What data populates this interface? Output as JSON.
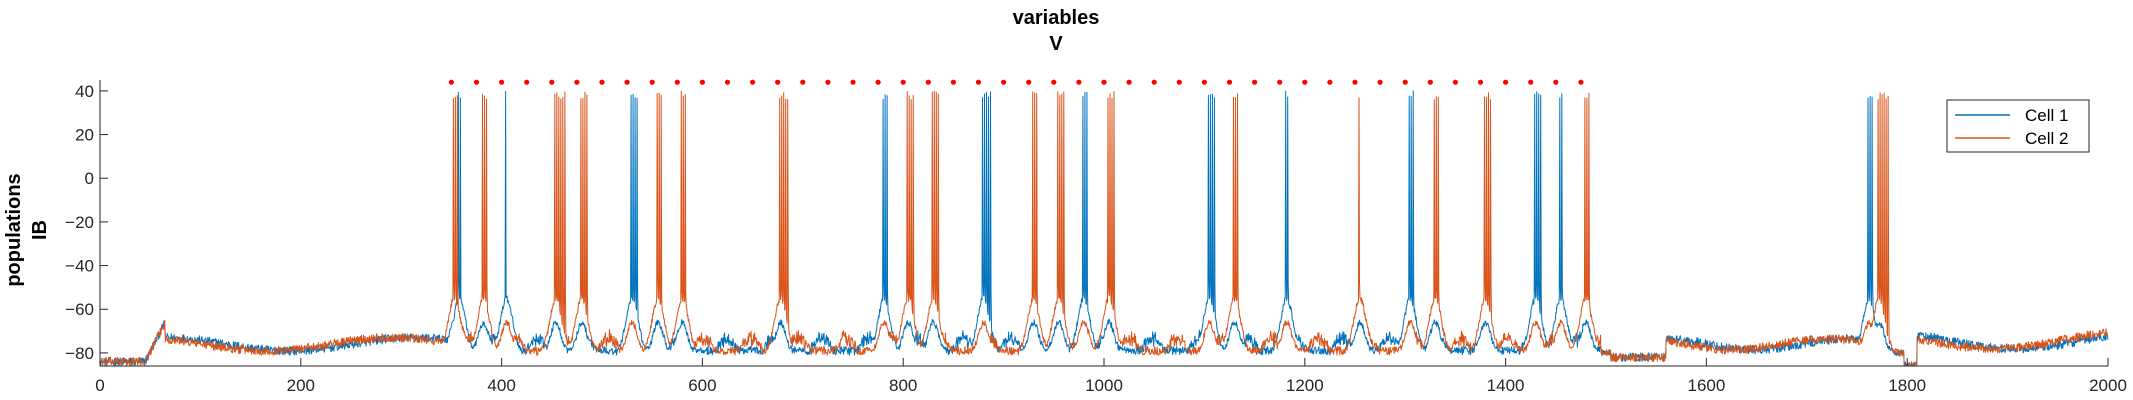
{
  "chart_data": {
    "type": "line",
    "title": [
      "variables",
      "V"
    ],
    "ylabel": [
      "populations",
      "IB"
    ],
    "xlabel": "",
    "xlim": [
      0,
      2000
    ],
    "ylim": [
      -86,
      45
    ],
    "xticks": [
      0,
      200,
      400,
      600,
      800,
      1000,
      1200,
      1400,
      1600,
      1800,
      2000
    ],
    "yticks": [
      -80,
      -60,
      -40,
      -20,
      0,
      20,
      40
    ],
    "grid": false,
    "legend_position": "top-right",
    "series": [
      {
        "name": "Cell 1",
        "color": "#0072BD"
      },
      {
        "name": "Cell 2",
        "color": "#D95319"
      }
    ],
    "burst_events": [
      {
        "t": 353,
        "cell": 2,
        "n": 3
      },
      {
        "t": 358,
        "cell": 1,
        "n": 2
      },
      {
        "t": 382,
        "cell": 2,
        "n": 3
      },
      {
        "t": 405,
        "cell": 1,
        "n": 1
      },
      {
        "t": 454,
        "cell": 2,
        "n": 6
      },
      {
        "t": 480,
        "cell": 2,
        "n": 4
      },
      {
        "t": 530,
        "cell": 1,
        "n": 4
      },
      {
        "t": 556,
        "cell": 2,
        "n": 3
      },
      {
        "t": 580,
        "cell": 2,
        "n": 3
      },
      {
        "t": 678,
        "cell": 2,
        "n": 5
      },
      {
        "t": 781,
        "cell": 1,
        "n": 3
      },
      {
        "t": 805,
        "cell": 2,
        "n": 4
      },
      {
        "t": 830,
        "cell": 2,
        "n": 4
      },
      {
        "t": 880,
        "cell": 1,
        "n": 5
      },
      {
        "t": 930,
        "cell": 2,
        "n": 3
      },
      {
        "t": 955,
        "cell": 2,
        "n": 4
      },
      {
        "t": 980,
        "cell": 1,
        "n": 3
      },
      {
        "t": 1005,
        "cell": 2,
        "n": 4
      },
      {
        "t": 1105,
        "cell": 1,
        "n": 4
      },
      {
        "t": 1130,
        "cell": 2,
        "n": 3
      },
      {
        "t": 1182,
        "cell": 1,
        "n": 2
      },
      {
        "t": 1255,
        "cell": 2,
        "n": 1
      },
      {
        "t": 1305,
        "cell": 1,
        "n": 3
      },
      {
        "t": 1330,
        "cell": 2,
        "n": 3
      },
      {
        "t": 1380,
        "cell": 2,
        "n": 4
      },
      {
        "t": 1430,
        "cell": 1,
        "n": 4
      },
      {
        "t": 1455,
        "cell": 1,
        "n": 2
      },
      {
        "t": 1480,
        "cell": 2,
        "n": 3
      },
      {
        "t": 1762,
        "cell": 1,
        "n": 3
      },
      {
        "t": 1772,
        "cell": 2,
        "n": 6
      }
    ],
    "markers": {
      "y": 44,
      "color": "#FF0000",
      "x": [
        350,
        375,
        400,
        425,
        450,
        475,
        500,
        525,
        550,
        575,
        600,
        625,
        650,
        675,
        700,
        725,
        750,
        775,
        800,
        825,
        850,
        875,
        900,
        925,
        950,
        975,
        1000,
        1025,
        1050,
        1075,
        1100,
        1125,
        1150,
        1175,
        1200,
        1225,
        1250,
        1275,
        1300,
        1325,
        1350,
        1375,
        1400,
        1425,
        1450,
        1475
      ]
    }
  }
}
